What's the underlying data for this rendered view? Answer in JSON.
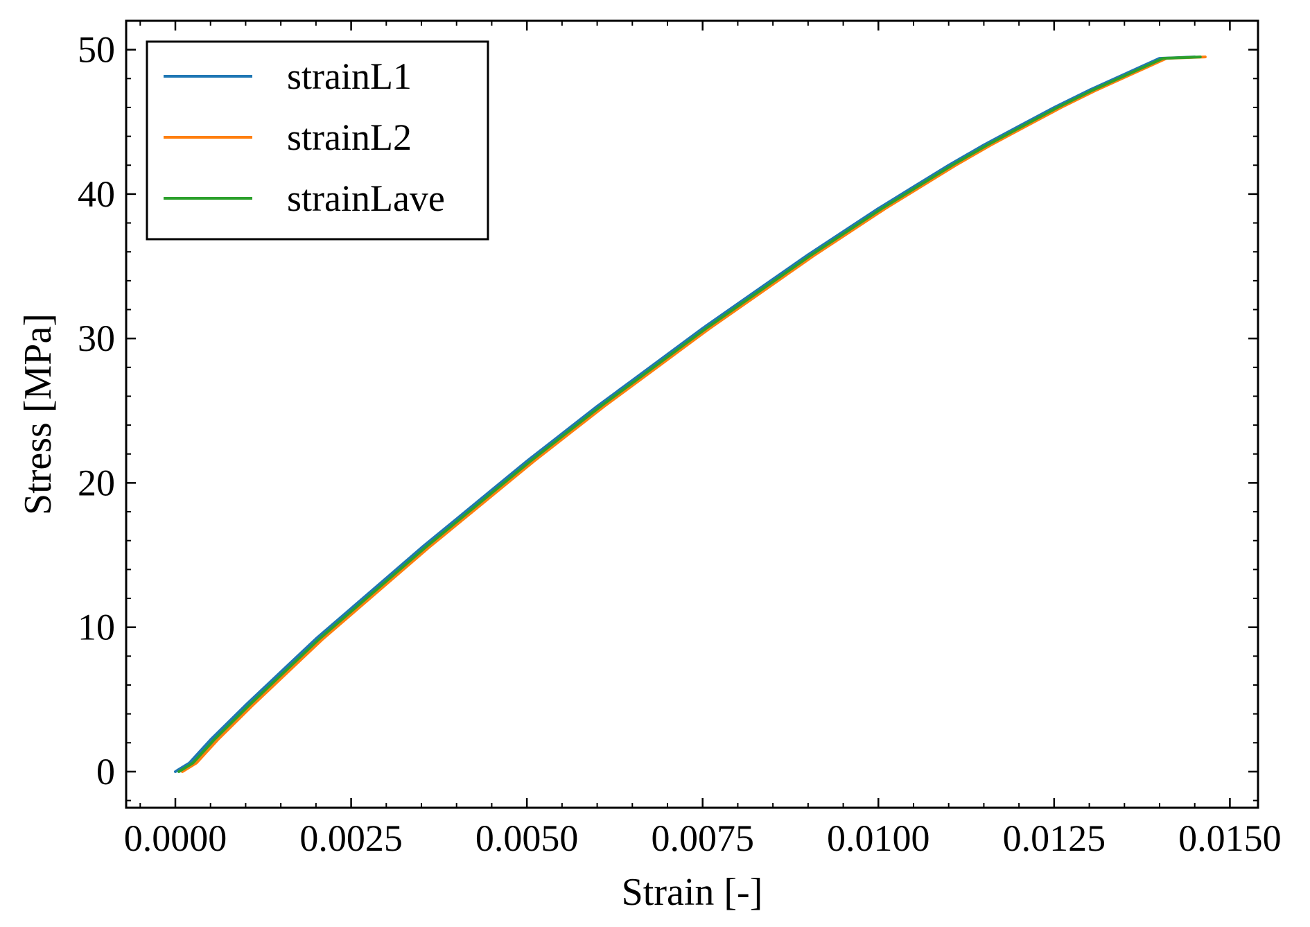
{
  "colors": {
    "strainL1": "#1f77b4",
    "strainL2": "#ff7f0e",
    "strainLave": "#2ca02c",
    "axes": "#000000",
    "background": "#ffffff"
  },
  "chart_data": {
    "type": "line",
    "title": "",
    "xlabel": "Strain [-]",
    "ylabel": "Stress [MPa]",
    "xlim": [
      -0.0007,
      0.0154
    ],
    "ylim": [
      -2.5,
      52
    ],
    "xticks": [
      0.0,
      0.0025,
      0.005,
      0.0075,
      0.01,
      0.0125,
      0.015
    ],
    "xtick_labels": [
      "0.0000",
      "0.0025",
      "0.0050",
      "0.0075",
      "0.0100",
      "0.0125",
      "0.0150"
    ],
    "yticks": [
      0,
      10,
      20,
      30,
      40,
      50
    ],
    "ytick_labels": [
      "0",
      "10",
      "20",
      "30",
      "40",
      "50"
    ],
    "x_minor_step": 0.0005,
    "y_minor_step": 2,
    "grid": false,
    "legend_position": "top-left",
    "series": [
      {
        "name": "strainL1",
        "color_key": "strainL1",
        "x": [
          0.0,
          0.0002,
          0.0005,
          0.001,
          0.0015,
          0.002,
          0.0025,
          0.003,
          0.0035,
          0.004,
          0.0045,
          0.005,
          0.0055,
          0.006,
          0.0065,
          0.007,
          0.0075,
          0.008,
          0.0085,
          0.009,
          0.0095,
          0.01,
          0.0105,
          0.011,
          0.0115,
          0.012,
          0.0125,
          0.013,
          0.0135,
          0.014,
          0.0145
        ],
        "y": [
          0.0,
          0.6,
          2.2,
          4.6,
          6.9,
          9.2,
          11.3,
          13.4,
          15.5,
          17.5,
          19.5,
          21.5,
          23.4,
          25.3,
          27.1,
          28.9,
          30.7,
          32.4,
          34.1,
          35.8,
          37.4,
          39.0,
          40.5,
          42.0,
          43.4,
          44.7,
          46.0,
          47.2,
          48.3,
          49.4,
          49.5
        ]
      },
      {
        "name": "strainL2",
        "color_key": "strainL2",
        "x": [
          0.0001,
          0.0003,
          0.0006,
          0.0011,
          0.0016,
          0.0021,
          0.0026,
          0.0031,
          0.0036,
          0.0041,
          0.0046,
          0.0051,
          0.0056,
          0.0061,
          0.0066,
          0.0071,
          0.0076,
          0.0081,
          0.0086,
          0.0091,
          0.0096,
          0.0101,
          0.0106,
          0.0111,
          0.0116,
          0.0121,
          0.0126,
          0.0131,
          0.0136,
          0.0141,
          0.01465
        ],
        "y": [
          0.0,
          0.6,
          2.2,
          4.6,
          6.9,
          9.2,
          11.3,
          13.4,
          15.5,
          17.5,
          19.5,
          21.5,
          23.4,
          25.3,
          27.1,
          28.9,
          30.7,
          32.4,
          34.1,
          35.8,
          37.4,
          39.0,
          40.5,
          42.0,
          43.4,
          44.7,
          46.0,
          47.2,
          48.3,
          49.4,
          49.5
        ]
      },
      {
        "name": "strainLave",
        "color_key": "strainLave",
        "x": [
          5e-05,
          0.00025,
          0.00055,
          0.00105,
          0.00155,
          0.00205,
          0.00255,
          0.00305,
          0.00355,
          0.00405,
          0.00455,
          0.00505,
          0.00555,
          0.00605,
          0.00655,
          0.00705,
          0.00755,
          0.00805,
          0.00855,
          0.00905,
          0.00955,
          0.01005,
          0.01055,
          0.01105,
          0.01155,
          0.01205,
          0.01255,
          0.01305,
          0.01355,
          0.01405,
          0.01458
        ],
        "y": [
          0.0,
          0.6,
          2.2,
          4.6,
          6.9,
          9.2,
          11.3,
          13.4,
          15.5,
          17.5,
          19.5,
          21.5,
          23.4,
          25.3,
          27.1,
          28.9,
          30.7,
          32.4,
          34.1,
          35.8,
          37.4,
          39.0,
          40.5,
          42.0,
          43.4,
          44.7,
          46.0,
          47.2,
          48.3,
          49.4,
          49.5
        ]
      }
    ]
  }
}
